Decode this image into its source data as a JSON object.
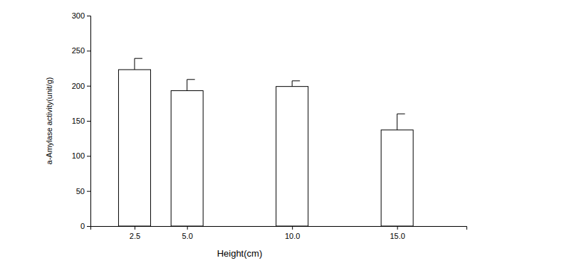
{
  "chart_data": {
    "type": "bar",
    "x_label": "Height(cm)",
    "y_label": "a-Amylase activity(unit/g)",
    "x": [
      2.5,
      5.0,
      10.0,
      15.0
    ],
    "values": [
      223,
      193,
      199,
      137
    ],
    "errors": [
      16,
      16,
      8,
      23
    ],
    "color": "#ffffff",
    "xlim": [
      0.4,
      18.3
    ],
    "xticks": [
      2.5,
      {
        "value": 5.0,
        "label": "5.0"
      },
      {
        "value": 10.0,
        "label": "10.0"
      },
      {
        "value": 15.0,
        "label": "15.0"
      }
    ],
    "ylim": [
      0,
      300
    ],
    "yticks": [
      0,
      50,
      100,
      150,
      200,
      250,
      300
    ],
    "grid": false
  }
}
